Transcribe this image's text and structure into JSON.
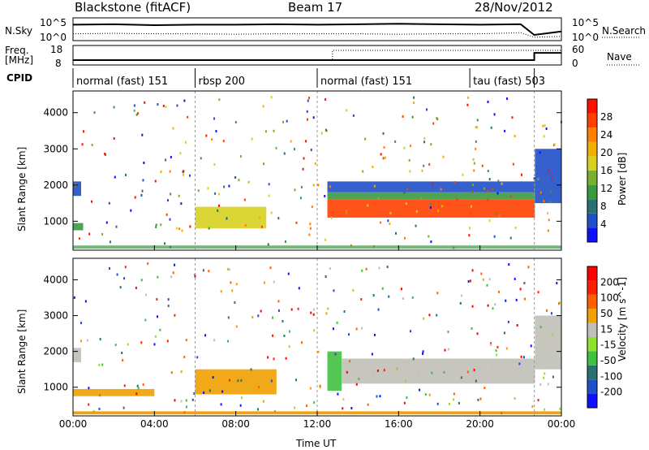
{
  "header": {
    "title": "Blackstone (fitACF)",
    "beam": "Beam 17",
    "date": "28/Nov/2012"
  },
  "chart_data": [
    {
      "type": "line",
      "panel": "noise",
      "left_label": "N.Sky",
      "right_label": "N.Search",
      "left_ticks": [
        "10^5",
        "10^0"
      ],
      "right_ticks": [
        "10^5",
        "10^0"
      ],
      "series": [
        {
          "name": "N.Sky",
          "style": "solid"
        },
        {
          "name": "N.Search",
          "style": "dotted"
        }
      ],
      "x": [
        "00:00",
        "02:00",
        "04:00",
        "06:00",
        "08:00",
        "10:00",
        "12:00",
        "14:00",
        "16:00",
        "18:00",
        "20:00",
        "22:00",
        "22:40",
        "24:00"
      ],
      "values_sky_rel": [
        0.7,
        0.72,
        0.68,
        0.7,
        0.7,
        0.72,
        0.7,
        0.72,
        0.74,
        0.72,
        0.7,
        0.72,
        0.25,
        0.4
      ],
      "values_search_rel": [
        0.3,
        0.32,
        0.3,
        0.3,
        0.28,
        0.3,
        0.3,
        0.3,
        0.28,
        0.3,
        0.3,
        0.35,
        0.15,
        0.18
      ]
    },
    {
      "type": "line",
      "panel": "frequency",
      "left_label_1": "Freq.",
      "left_label_2": "[MHz]",
      "right_label": "Nave",
      "left_ticks": [
        "18",
        "8"
      ],
      "right_ticks": [
        "60",
        "0"
      ],
      "series": [
        {
          "name": "Freq.",
          "style": "solid",
          "x": [
            "00:00",
            "12:45",
            "12:45",
            "22:40",
            "22:40",
            "24:00"
          ],
          "y": [
            10.5,
            10.5,
            10.5,
            10.5,
            14.2,
            14.2
          ]
        },
        {
          "name": "Nave",
          "style": "dotted",
          "x": [
            "00:00",
            "12:45",
            "12:45",
            "22:40",
            "22:40",
            "24:00"
          ],
          "y": [
            15,
            15,
            45,
            45,
            45,
            45
          ]
        }
      ],
      "ylim": [
        8,
        18
      ]
    },
    {
      "type": "table",
      "panel": "cpid",
      "label": "CPID",
      "segments": [
        {
          "label": "normal (fast) 151",
          "start": "00:00",
          "end": "06:00"
        },
        {
          "label": "rbsp 200",
          "start": "06:00",
          "end": "12:00"
        },
        {
          "label": "normal (fast) 151",
          "start": "12:00",
          "end": "19:30"
        },
        {
          "label": "tau (fast) 503",
          "start": "19:30",
          "end": "22:40"
        }
      ]
    },
    {
      "type": "heatmap",
      "panel": "power",
      "ylabel": "Slant Range [km]",
      "yticks": [
        1000,
        2000,
        3000,
        4000
      ],
      "ylim": [
        200,
        4600
      ],
      "colorbar": {
        "label": "Power [dB]",
        "ticks": [
          "4",
          "8",
          "12",
          "16",
          "20",
          "24",
          "28"
        ],
        "colors": [
          "#1010ff",
          "#2050c8",
          "#2a7070",
          "#3a9a40",
          "#7ab030",
          "#d8d020",
          "#f0b000",
          "#ff8000",
          "#ff4000",
          "#ff1000"
        ]
      },
      "bands": [
        {
          "x0": 0.0,
          "x1": 0.5,
          "r0": 750,
          "r1": 950,
          "color": "#3a9a40"
        },
        {
          "x0": 0.0,
          "x1": 0.4,
          "r0": 1700,
          "r1": 2100,
          "color": "#2050c8"
        },
        {
          "x0": 6.0,
          "x1": 9.5,
          "r0": 800,
          "r1": 1400,
          "color": "#d8d020"
        },
        {
          "x0": 12.5,
          "x1": 22.7,
          "r0": 1100,
          "r1": 1600,
          "color": "#ff4000"
        },
        {
          "x0": 12.5,
          "x1": 22.7,
          "r0": 1600,
          "r1": 1800,
          "color": "#3a9a40"
        },
        {
          "x0": 12.5,
          "x1": 22.7,
          "r0": 1800,
          "r1": 2100,
          "color": "#2050c8"
        },
        {
          "x0": 22.7,
          "x1": 24.0,
          "r0": 1500,
          "r1": 3000,
          "color": "#2050c8"
        }
      ]
    },
    {
      "type": "heatmap",
      "panel": "velocity",
      "xlabel": "Time UT",
      "ylabel": "Slant Range [km]",
      "yticks": [
        1000,
        2000,
        3000,
        4000
      ],
      "ylim": [
        200,
        4600
      ],
      "xticks": [
        "00:00",
        "04:00",
        "08:00",
        "12:00",
        "16:00",
        "20:00",
        "00:00"
      ],
      "colorbar": {
        "label": "Velocity [m s^-1]",
        "ticks": [
          "200",
          "100",
          "50",
          "15",
          "-15",
          "-50",
          "-100",
          "-200"
        ],
        "colors": [
          "#1010ff",
          "#2050c8",
          "#2a7070",
          "#40c040",
          "#90e030",
          "#c0c0b8",
          "#f0a000",
          "#ff6000",
          "#ff2000",
          "#ff0000"
        ]
      },
      "bands": [
        {
          "x0": 0.0,
          "x1": 0.4,
          "r0": 1700,
          "r1": 2100,
          "color": "#c0c0b8"
        },
        {
          "x0": 0.0,
          "x1": 4.0,
          "r0": 750,
          "r1": 950,
          "color": "#f0a000"
        },
        {
          "x0": 6.0,
          "x1": 10.0,
          "r0": 800,
          "r1": 1500,
          "color": "#f0a000"
        },
        {
          "x0": 12.5,
          "x1": 13.2,
          "r0": 900,
          "r1": 2000,
          "color": "#40c040"
        },
        {
          "x0": 13.2,
          "x1": 22.7,
          "r0": 1100,
          "r1": 1800,
          "color": "#c0c0b8"
        },
        {
          "x0": 22.7,
          "x1": 24.0,
          "r0": 1500,
          "r1": 3000,
          "color": "#c0c0b8"
        },
        {
          "x0": 0.0,
          "x1": 24.0,
          "r0": 250,
          "r1": 320,
          "color": "#f0a000"
        }
      ]
    }
  ]
}
